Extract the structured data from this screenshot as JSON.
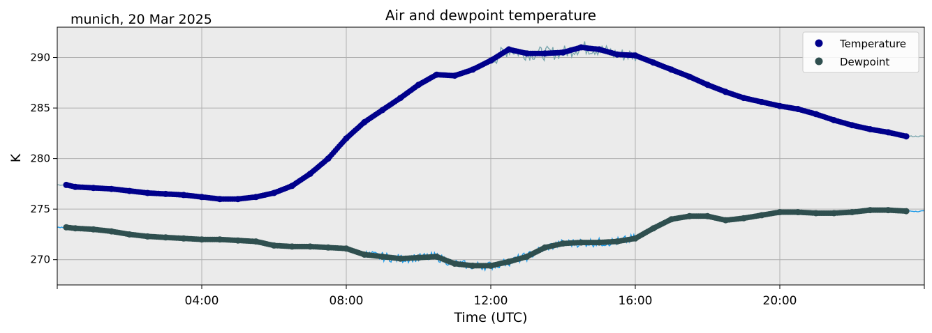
{
  "chart_data": {
    "type": "scatter",
    "title": "Air and dewpoint temperature",
    "subtitle": "munich, 20 Mar 2025",
    "xlabel": "Time (UTC)",
    "ylabel": "K",
    "x_unit": "hours UTC",
    "xlim": [
      0,
      24
    ],
    "ylim": [
      267.5,
      293
    ],
    "x_ticks": [
      {
        "value": 4,
        "label": "04:00"
      },
      {
        "value": 8,
        "label": "08:00"
      },
      {
        "value": 12,
        "label": "12:00"
      },
      {
        "value": 16,
        "label": "16:00"
      },
      {
        "value": 20,
        "label": "20:00"
      }
    ],
    "y_ticks": [
      270,
      275,
      280,
      285,
      290
    ],
    "grid": true,
    "legend_position": "top-right",
    "colors": {
      "temperature": "#00008b",
      "dewpoint": "#2f4f4f",
      "temperature_raw": "#7aa6ae",
      "dewpoint_raw": "#1e9be8",
      "plot_background": "#ebebeb",
      "grid": "#b0b0b0"
    },
    "series": [
      {
        "name": "Temperature",
        "x": [
          0.25,
          0.5,
          1.0,
          1.5,
          2.0,
          2.5,
          3.0,
          3.5,
          4.0,
          4.5,
          5.0,
          5.5,
          6.0,
          6.5,
          7.0,
          7.5,
          8.0,
          8.5,
          9.0,
          9.5,
          10.0,
          10.5,
          11.0,
          11.5,
          12.0,
          12.5,
          13.0,
          13.5,
          14.0,
          14.5,
          15.0,
          15.5,
          16.0,
          16.5,
          17.0,
          17.5,
          18.0,
          18.5,
          19.0,
          19.5,
          20.0,
          20.5,
          21.0,
          21.5,
          22.0,
          22.5,
          23.0,
          23.5
        ],
        "values": [
          277.4,
          277.2,
          277.1,
          277.0,
          276.8,
          276.6,
          276.5,
          276.4,
          276.2,
          276.0,
          276.0,
          276.2,
          276.6,
          277.3,
          278.5,
          280.0,
          282.0,
          283.6,
          284.8,
          286.0,
          287.3,
          288.3,
          288.2,
          288.8,
          289.7,
          290.8,
          290.4,
          290.4,
          290.5,
          291.0,
          290.8,
          290.3,
          290.2,
          289.5,
          288.8,
          288.1,
          287.3,
          286.6,
          286.0,
          285.6,
          285.2,
          284.9,
          284.4,
          283.8,
          283.3,
          282.9,
          282.6,
          282.2
        ]
      },
      {
        "name": "Dewpoint",
        "x": [
          0.25,
          0.5,
          1.0,
          1.5,
          2.0,
          2.5,
          3.0,
          3.5,
          4.0,
          4.5,
          5.0,
          5.5,
          6.0,
          6.5,
          7.0,
          7.5,
          8.0,
          8.5,
          9.0,
          9.5,
          10.0,
          10.5,
          11.0,
          11.5,
          12.0,
          12.5,
          13.0,
          13.5,
          14.0,
          14.5,
          15.0,
          15.5,
          16.0,
          16.5,
          17.0,
          17.5,
          18.0,
          18.5,
          19.0,
          19.5,
          20.0,
          20.5,
          21.0,
          21.5,
          22.0,
          22.5,
          23.0,
          23.5
        ],
        "values": [
          273.2,
          273.1,
          273.0,
          272.8,
          272.5,
          272.3,
          272.2,
          272.1,
          272.0,
          272.0,
          271.9,
          271.8,
          271.4,
          271.3,
          271.3,
          271.2,
          271.1,
          270.5,
          270.3,
          270.1,
          270.2,
          270.3,
          269.6,
          269.4,
          269.4,
          269.8,
          270.3,
          271.2,
          271.6,
          271.7,
          271.7,
          271.8,
          272.1,
          273.1,
          274.0,
          274.3,
          274.3,
          273.9,
          274.1,
          274.4,
          274.7,
          274.7,
          274.6,
          274.6,
          274.7,
          274.9,
          274.9,
          274.8
        ]
      }
    ]
  }
}
